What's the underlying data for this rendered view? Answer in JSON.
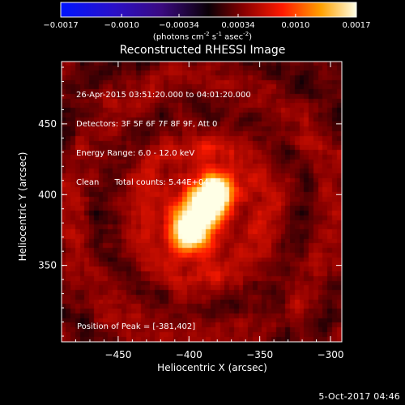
{
  "chart_data": {
    "type": "heatmap",
    "title": "Reconstructed RHESSI Image",
    "xlabel": "Heliocentric X (arcsec)",
    "ylabel": "Heliocentric Y (arcsec)",
    "xlim": [
      -490,
      -292
    ],
    "ylim": [
      296,
      494
    ],
    "x_ticks": [
      -450,
      -400,
      -350,
      -300
    ],
    "y_ticks": [
      350,
      400,
      450
    ],
    "colorbar": {
      "ticks": [
        "-0.0017",
        "-0.0010",
        "-0.00034",
        "0.00034",
        "0.0010",
        "0.0017"
      ],
      "range": [
        -0.0017,
        0.0017
      ],
      "label_text": "(photons cm",
      "label_sup1": "-2",
      "label_mid": " s",
      "label_sup2": "-1",
      "label_end": " asec",
      "label_sup3": "-2",
      "label_close": ")",
      "colormap": "red-temperature"
    },
    "sources": [
      {
        "x": -381,
        "y": 402,
        "intensity": 0.0017,
        "sigma": 9
      },
      {
        "x": -400,
        "y": 372,
        "intensity": 0.00125,
        "sigma": 10
      },
      {
        "x": -392,
        "y": 388,
        "intensity": 0.0009,
        "sigma": 15
      }
    ],
    "annotations": {
      "time_range": "26-Apr-2015 03:51:20.000 to 04:01:20.000",
      "detectors": "Detectors: 3F 5F 6F 7F 8F 9F, Att 0",
      "energy": "Energy Range: 6.0 - 12.0 keV",
      "clean": "Clean",
      "counts": "Total counts: 5.44E+04",
      "peak": "Position of Peak = [-381,402]"
    }
  },
  "footer": {
    "timestamp": "5-Oct-2017 04:46"
  }
}
